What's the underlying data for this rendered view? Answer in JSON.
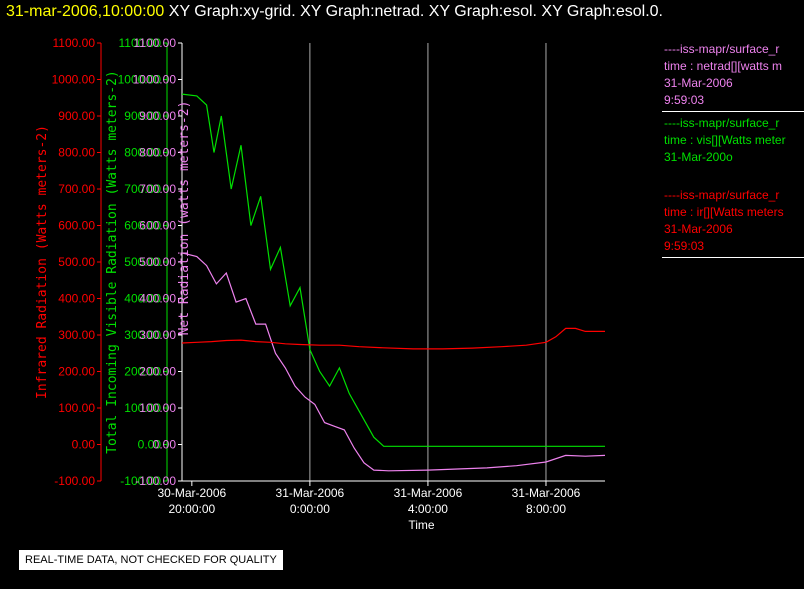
{
  "title": {
    "timestamp": "31-mar-2006,10:00:00",
    "graphs": "XY Graph:xy-grid.  XY Graph:netrad.  XY Graph:esol.  XY Graph:esol.0."
  },
  "colors": {
    "red": "#ff0000",
    "green": "#00e000",
    "violet": "#ee82ee",
    "grid": "#aaaaaa"
  },
  "legend": [
    {
      "name": "legend-netrad",
      "color": "#ee82ee",
      "lines": [
        "----iss-mapr/surface_r",
        "time : netrad[][watts m",
        "31-Mar-2006",
        "9:59:03"
      ]
    },
    {
      "name": "legend-vis",
      "color": "#00e000",
      "lines": [
        "----iss-mapr/surface_r",
        "time : vis[][Watts meter",
        "31-Mar-200o"
      ]
    },
    {
      "name": "legend-ir",
      "color": "#ff0000",
      "lines": [
        "----iss-mapr/surface_r",
        "time : ir[][Watts meters",
        "31-Mar-2006",
        "9:59:03"
      ]
    }
  ],
  "footer": "REAL-TIME DATA, NOT CHECKED FOR QUALITY",
  "chart_data": {
    "type": "line",
    "xlabel": "Time",
    "xlim": [
      "2006-03-30T19:40:00",
      "2006-03-31T10:00:00"
    ],
    "x_ticks": [
      {
        "t": "2006-03-30T20:00:00",
        "label": [
          "30-Mar-2006",
          "20:00:00"
        ]
      },
      {
        "t": "2006-03-31T00:00:00",
        "label": [
          "31-Mar-2006",
          "0:00:00"
        ]
      },
      {
        "t": "2006-03-31T04:00:00",
        "label": [
          "31-Mar-2006",
          "4:00:00"
        ]
      },
      {
        "t": "2006-03-31T08:00:00",
        "label": [
          "31-Mar-2006",
          "8:00:00"
        ]
      }
    ],
    "grid_vertical": true,
    "y_axes": [
      {
        "id": "ir",
        "label": "Infrared Radiation (Watts meters-2)",
        "color": "#ff0000",
        "ylim": [
          -100,
          1100
        ],
        "ticks": [
          "-100.00",
          "0.00",
          "100.00",
          "200.00",
          "300.00",
          "400.00",
          "500.00",
          "600.00",
          "700.00",
          "800.00",
          "900.00",
          "1000.00",
          "1100.00"
        ]
      },
      {
        "id": "vis",
        "label": "Total Incoming Visible Radiation (Watts meters-2)",
        "color": "#00e000",
        "ylim": [
          -100,
          1100
        ],
        "ticks": [
          "-100.00",
          "0.00",
          "100.00",
          "200.00",
          "300.00",
          "400.00",
          "500.00",
          "600.00",
          "700.00",
          "800.00",
          "900.00",
          "1000.00",
          "1100.00"
        ]
      },
      {
        "id": "netrad",
        "label": "Net Radiation (watts meters-2)",
        "color": "#ee82ee",
        "ylim": [
          -100,
          1100
        ],
        "ticks": [
          "-100.00",
          "0.00",
          "100.00",
          "200.00",
          "300.00",
          "400.00",
          "500.00",
          "600.00",
          "700.00",
          "800.00",
          "900.00",
          "1000.00",
          "1100.00"
        ]
      }
    ],
    "series": [
      {
        "id": "vis",
        "color": "#00e000",
        "points": [
          [
            "2006-03-30T19:40:00",
            960
          ],
          [
            "2006-03-30T20:10:00",
            955
          ],
          [
            "2006-03-30T20:30:00",
            930
          ],
          [
            "2006-03-30T20:45:00",
            800
          ],
          [
            "2006-03-30T21:00:00",
            900
          ],
          [
            "2006-03-30T21:20:00",
            700
          ],
          [
            "2006-03-30T21:40:00",
            820
          ],
          [
            "2006-03-30T22:00:00",
            600
          ],
          [
            "2006-03-30T22:20:00",
            680
          ],
          [
            "2006-03-30T22:40:00",
            480
          ],
          [
            "2006-03-30T23:00:00",
            540
          ],
          [
            "2006-03-30T23:20:00",
            380
          ],
          [
            "2006-03-30T23:40:00",
            430
          ],
          [
            "2006-03-31T00:00:00",
            260
          ],
          [
            "2006-03-31T00:20:00",
            200
          ],
          [
            "2006-03-31T00:40:00",
            160
          ],
          [
            "2006-03-31T01:00:00",
            210
          ],
          [
            "2006-03-31T01:20:00",
            140
          ],
          [
            "2006-03-31T01:45:00",
            80
          ],
          [
            "2006-03-31T02:10:00",
            20
          ],
          [
            "2006-03-31T02:30:00",
            -5
          ],
          [
            "2006-03-31T04:00:00",
            -5
          ],
          [
            "2006-03-31T06:00:00",
            -5
          ],
          [
            "2006-03-31T08:00:00",
            -5
          ],
          [
            "2006-03-31T10:00:00",
            -5
          ]
        ]
      },
      {
        "id": "netrad",
        "color": "#ee82ee",
        "points": [
          [
            "2006-03-30T19:40:00",
            525
          ],
          [
            "2006-03-30T20:10:00",
            515
          ],
          [
            "2006-03-30T20:30:00",
            490
          ],
          [
            "2006-03-30T20:50:00",
            440
          ],
          [
            "2006-03-30T21:10:00",
            470
          ],
          [
            "2006-03-30T21:30:00",
            390
          ],
          [
            "2006-03-30T21:50:00",
            400
          ],
          [
            "2006-03-30T22:10:00",
            330
          ],
          [
            "2006-03-30T22:30:00",
            330
          ],
          [
            "2006-03-30T22:50:00",
            250
          ],
          [
            "2006-03-30T23:10:00",
            210
          ],
          [
            "2006-03-30T23:30:00",
            160
          ],
          [
            "2006-03-30T23:50:00",
            130
          ],
          [
            "2006-03-31T00:10:00",
            110
          ],
          [
            "2006-03-31T00:30:00",
            60
          ],
          [
            "2006-03-31T00:50:00",
            50
          ],
          [
            "2006-03-31T01:10:00",
            40
          ],
          [
            "2006-03-31T01:30:00",
            -10
          ],
          [
            "2006-03-31T01:50:00",
            -50
          ],
          [
            "2006-03-31T02:10:00",
            -70
          ],
          [
            "2006-03-31T02:40:00",
            -72
          ],
          [
            "2006-03-31T04:00:00",
            -70
          ],
          [
            "2006-03-31T05:00:00",
            -67
          ],
          [
            "2006-03-31T06:00:00",
            -64
          ],
          [
            "2006-03-31T07:00:00",
            -58
          ],
          [
            "2006-03-31T08:00:00",
            -48
          ],
          [
            "2006-03-31T08:40:00",
            -30
          ],
          [
            "2006-03-31T09:20:00",
            -32
          ],
          [
            "2006-03-31T10:00:00",
            -30
          ]
        ]
      },
      {
        "id": "ir",
        "color": "#ff0000",
        "points": [
          [
            "2006-03-30T19:40:00",
            278
          ],
          [
            "2006-03-30T20:10:00",
            280
          ],
          [
            "2006-03-30T20:40:00",
            282
          ],
          [
            "2006-03-30T21:10:00",
            285
          ],
          [
            "2006-03-30T21:40:00",
            286
          ],
          [
            "2006-03-30T22:10:00",
            282
          ],
          [
            "2006-03-30T22:40:00",
            280
          ],
          [
            "2006-03-30T23:10:00",
            276
          ],
          [
            "2006-03-30T23:40:00",
            274
          ],
          [
            "2006-03-31T00:20:00",
            272
          ],
          [
            "2006-03-31T01:00:00",
            272
          ],
          [
            "2006-03-31T01:40:00",
            268
          ],
          [
            "2006-03-31T02:30:00",
            265
          ],
          [
            "2006-03-31T03:30:00",
            262
          ],
          [
            "2006-03-31T04:30:00",
            262
          ],
          [
            "2006-03-31T05:30:00",
            264
          ],
          [
            "2006-03-31T06:30:00",
            268
          ],
          [
            "2006-03-31T07:20:00",
            272
          ],
          [
            "2006-03-31T08:00:00",
            280
          ],
          [
            "2006-03-31T08:20:00",
            295
          ],
          [
            "2006-03-31T08:40:00",
            318
          ],
          [
            "2006-03-31T09:00:00",
            318
          ],
          [
            "2006-03-31T09:20:00",
            310
          ],
          [
            "2006-03-31T10:00:00",
            310
          ]
        ]
      }
    ]
  }
}
